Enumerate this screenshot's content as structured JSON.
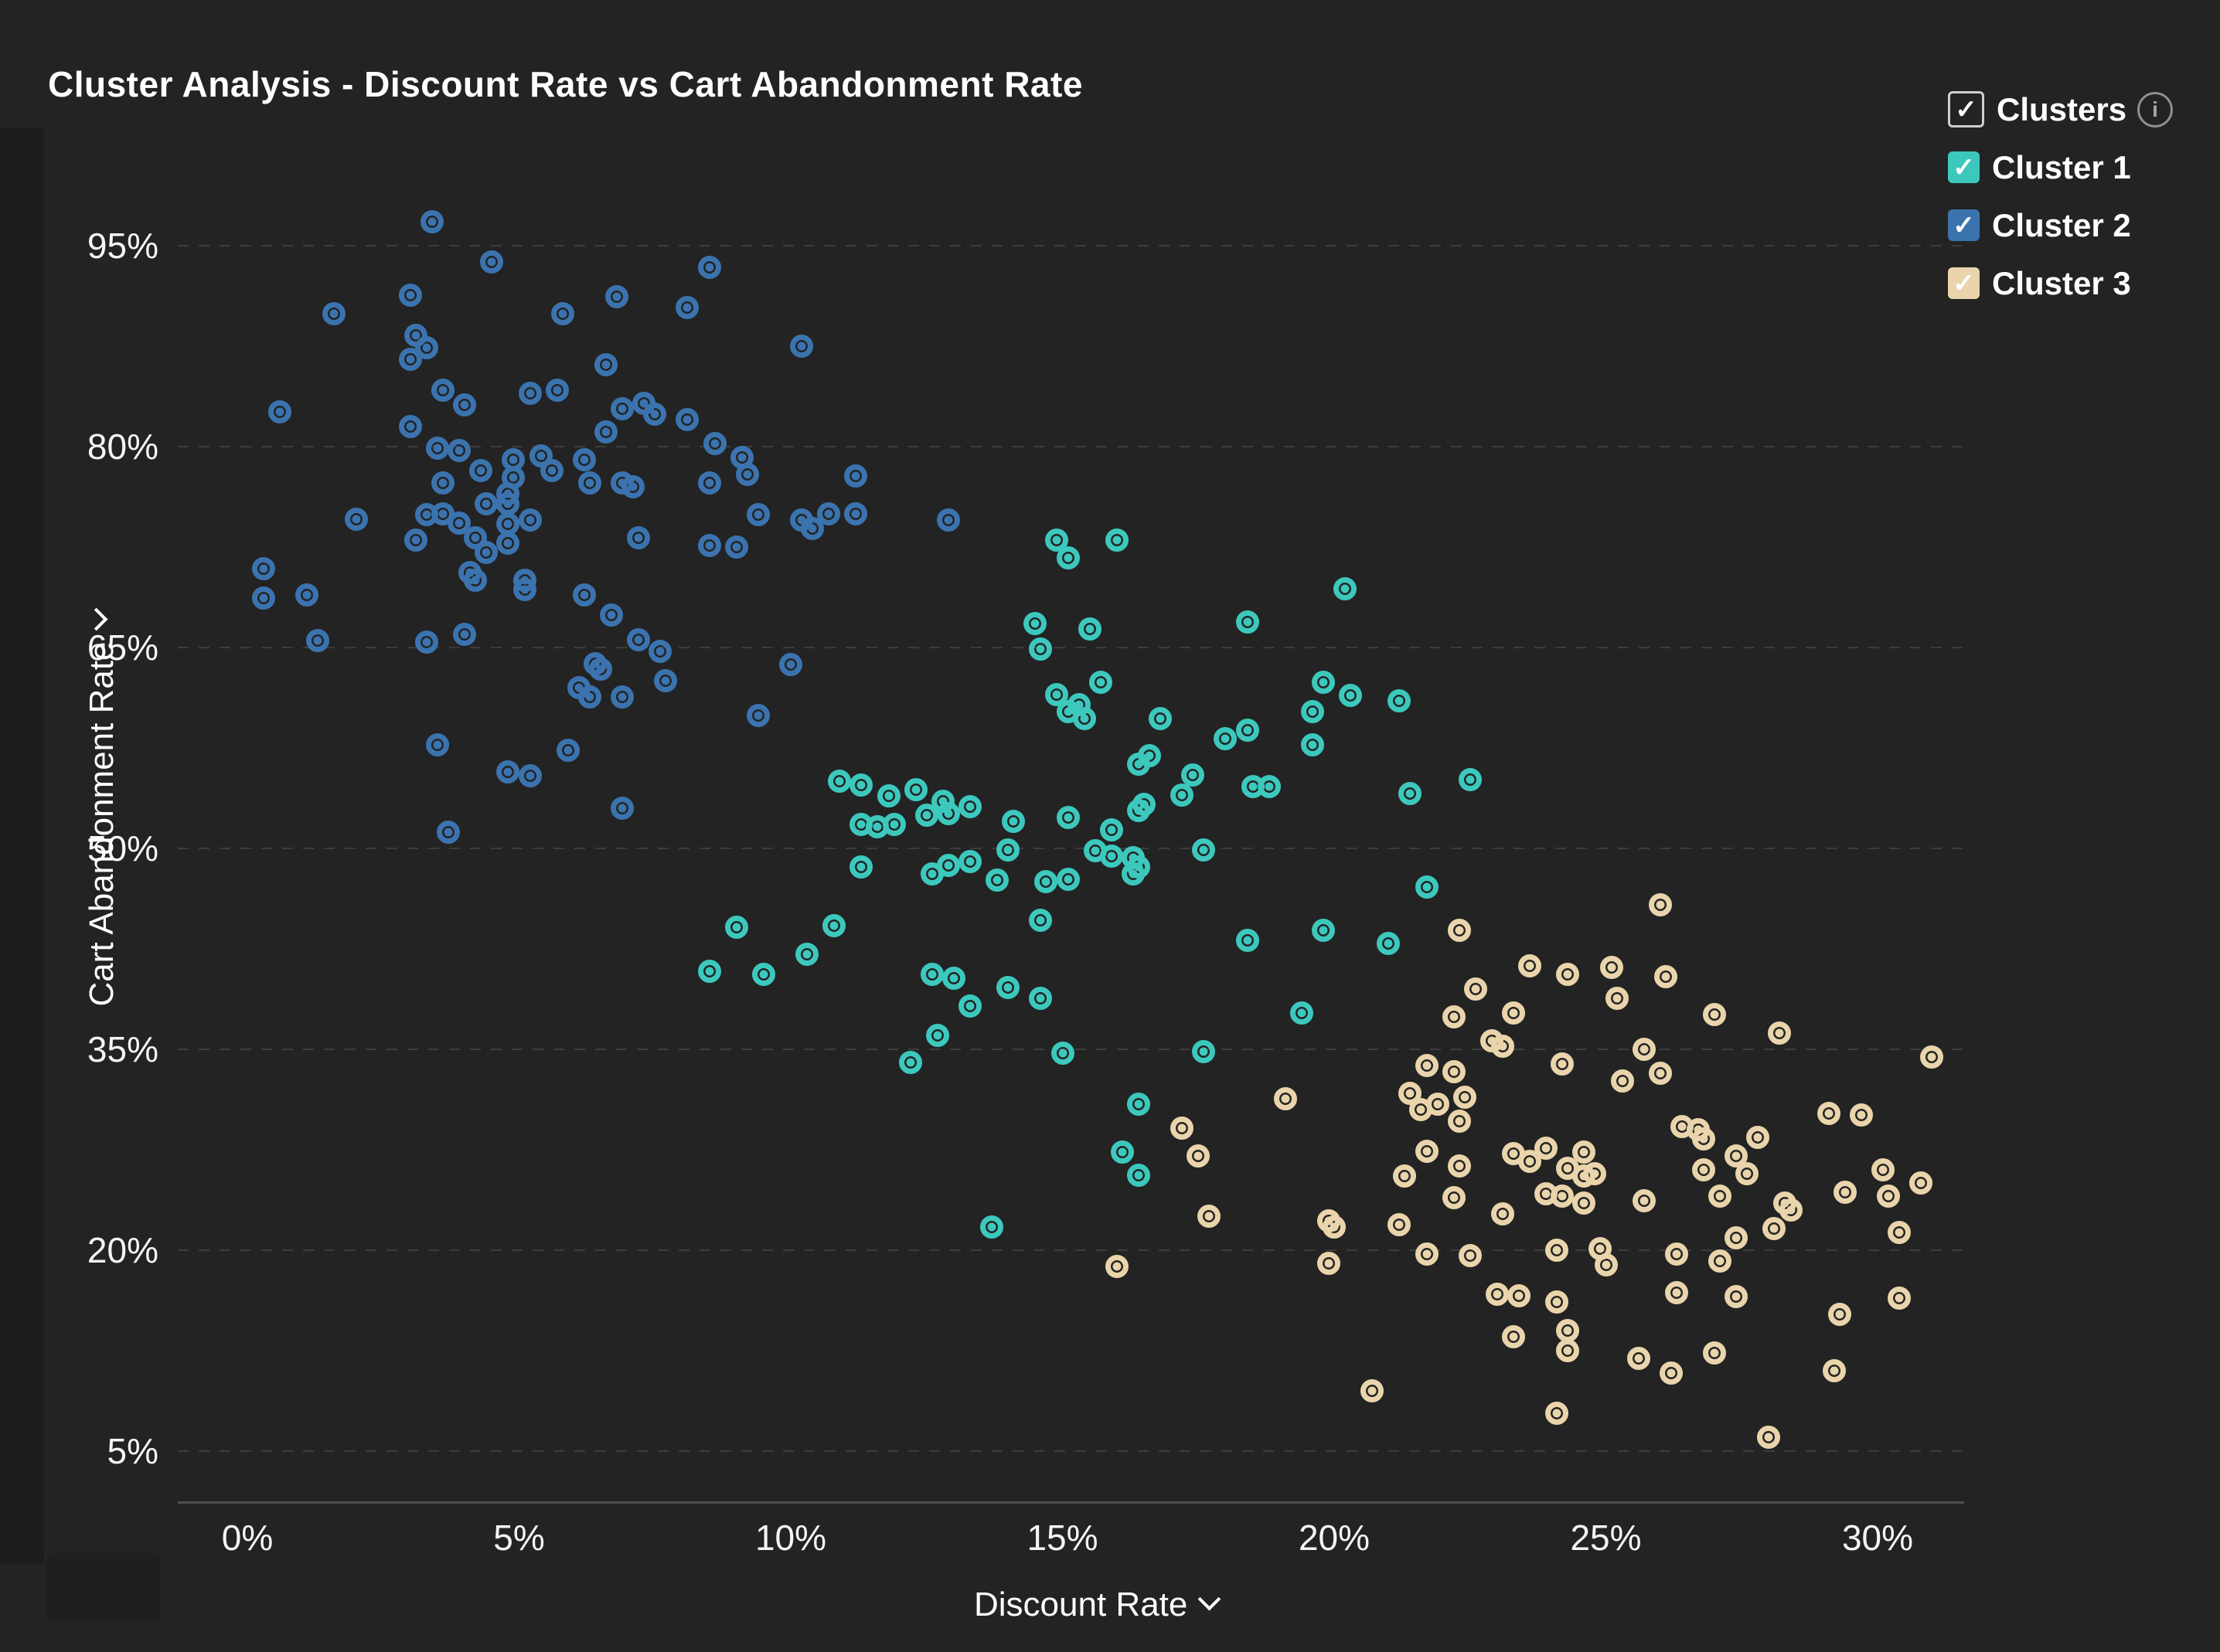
{
  "title": "Cluster Analysis - Discount Rate vs Cart Abandonment Rate",
  "legend": {
    "header": {
      "label": "Clusters",
      "checked": true
    },
    "items": [
      {
        "label": "Cluster 1",
        "color": "#3cc8bd",
        "checked": true
      },
      {
        "label": "Cluster 2",
        "color": "#3b73af",
        "checked": true
      },
      {
        "label": "Cluster 3",
        "color": "#e9d4ab",
        "checked": true
      }
    ]
  },
  "chart_data": {
    "type": "scatter",
    "title": "Cluster Analysis - Discount Rate vs Cart Abandonment Rate",
    "xlabel": "Discount Rate",
    "ylabel": "Cart Abandonment Rate",
    "x_ticks": {
      "values": [
        0,
        5,
        10,
        15,
        20,
        25,
        30
      ],
      "labels": [
        "0%",
        "5%",
        "10%",
        "15%",
        "20%",
        "25%",
        "30%"
      ]
    },
    "y_ticks": {
      "values": [
        95,
        80,
        65,
        50,
        35,
        20,
        5
      ],
      "labels": [
        "95%",
        "80%",
        "65%",
        "50%",
        "35%",
        "20%",
        "5%"
      ]
    },
    "xlim": [
      -1.3,
      31.7
    ],
    "ylim": [
      0,
      100
    ],
    "grid": "dashed-horizontal",
    "legend_position": "top-right",
    "series": [
      {
        "name": "Cluster 1",
        "color": "#3cc8bd",
        "points": [
          [
            14.9,
            73.0
          ],
          [
            16.0,
            73.0
          ],
          [
            15.1,
            71.7
          ],
          [
            20.2,
            69.4
          ],
          [
            18.4,
            66.9
          ],
          [
            15.5,
            66.4
          ],
          [
            14.5,
            66.8
          ],
          [
            14.6,
            64.9
          ],
          [
            15.7,
            62.4
          ],
          [
            14.9,
            61.5
          ],
          [
            15.3,
            60.7
          ],
          [
            15.1,
            60.2
          ],
          [
            15.4,
            59.7
          ],
          [
            16.8,
            59.7
          ],
          [
            19.8,
            62.4
          ],
          [
            21.2,
            61.0
          ],
          [
            20.3,
            61.4
          ],
          [
            19.6,
            60.2
          ],
          [
            18.0,
            58.2
          ],
          [
            18.4,
            58.8
          ],
          [
            19.6,
            57.7
          ],
          [
            16.6,
            56.9
          ],
          [
            16.4,
            56.3
          ],
          [
            17.4,
            55.5
          ],
          [
            18.5,
            54.6
          ],
          [
            18.8,
            54.6
          ],
          [
            22.5,
            55.1
          ],
          [
            21.4,
            54.1
          ],
          [
            17.2,
            54.0
          ],
          [
            16.5,
            53.3
          ],
          [
            10.9,
            55.0
          ],
          [
            11.3,
            54.7
          ],
          [
            11.8,
            53.9
          ],
          [
            12.3,
            54.4
          ],
          [
            12.8,
            53.5
          ],
          [
            13.3,
            53.1
          ],
          [
            11.3,
            51.8
          ],
          [
            11.6,
            51.6
          ],
          [
            11.9,
            51.8
          ],
          [
            12.5,
            52.5
          ],
          [
            12.9,
            52.6
          ],
          [
            14.1,
            52.0
          ],
          [
            14.0,
            49.9
          ],
          [
            11.3,
            48.6
          ],
          [
            12.6,
            48.1
          ],
          [
            12.9,
            48.7
          ],
          [
            13.3,
            49.0
          ],
          [
            13.8,
            47.6
          ],
          [
            15.1,
            52.3
          ],
          [
            16.4,
            52.8
          ],
          [
            15.9,
            51.4
          ],
          [
            15.6,
            49.8
          ],
          [
            15.9,
            49.4
          ],
          [
            16.3,
            49.3
          ],
          [
            16.4,
            48.6
          ],
          [
            16.3,
            48.1
          ],
          [
            15.1,
            47.7
          ],
          [
            14.7,
            47.5
          ],
          [
            17.6,
            49.9
          ],
          [
            14.6,
            44.6
          ],
          [
            21.7,
            47.1
          ],
          [
            18.4,
            43.1
          ],
          [
            19.8,
            43.9
          ],
          [
            21.0,
            42.9
          ],
          [
            19.4,
            37.7
          ],
          [
            15.0,
            34.7
          ],
          [
            17.6,
            34.8
          ],
          [
            16.4,
            30.9
          ],
          [
            16.1,
            27.3
          ],
          [
            16.4,
            25.6
          ],
          [
            9.0,
            44.1
          ],
          [
            10.8,
            44.2
          ],
          [
            10.3,
            42.1
          ],
          [
            8.5,
            40.8
          ],
          [
            9.5,
            40.6
          ],
          [
            12.6,
            40.6
          ],
          [
            13.0,
            40.3
          ],
          [
            13.3,
            38.2
          ],
          [
            14.0,
            39.6
          ],
          [
            14.6,
            38.8
          ],
          [
            12.7,
            36.0
          ],
          [
            12.2,
            34.0
          ],
          [
            13.7,
            21.7
          ]
        ]
      },
      {
        "name": "Cluster 2",
        "color": "#3b73af",
        "points": [
          [
            3.4,
            96.8
          ],
          [
            4.5,
            93.8
          ],
          [
            8.5,
            93.4
          ],
          [
            3.0,
            91.3
          ],
          [
            1.6,
            89.9
          ],
          [
            6.8,
            91.2
          ],
          [
            8.1,
            90.4
          ],
          [
            5.8,
            89.9
          ],
          [
            10.2,
            87.5
          ],
          [
            3.1,
            88.3
          ],
          [
            3.3,
            87.4
          ],
          [
            3.0,
            86.5
          ],
          [
            6.6,
            86.1
          ],
          [
            3.6,
            84.2
          ],
          [
            4.0,
            83.1
          ],
          [
            5.2,
            84.0
          ],
          [
            5.7,
            84.2
          ],
          [
            0.6,
            82.6
          ],
          [
            6.9,
            82.8
          ],
          [
            7.3,
            83.2
          ],
          [
            7.5,
            82.4
          ],
          [
            8.1,
            82.0
          ],
          [
            3.0,
            81.5
          ],
          [
            6.6,
            81.1
          ],
          [
            8.6,
            80.2
          ],
          [
            3.5,
            79.9
          ],
          [
            3.9,
            79.7
          ],
          [
            4.9,
            79.0
          ],
          [
            5.4,
            79.3
          ],
          [
            4.3,
            78.2
          ],
          [
            4.9,
            77.7
          ],
          [
            5.6,
            78.2
          ],
          [
            6.2,
            79.0
          ],
          [
            3.6,
            77.3
          ],
          [
            4.8,
            76.5
          ],
          [
            4.4,
            75.7
          ],
          [
            4.8,
            75.7
          ],
          [
            6.3,
            77.3
          ],
          [
            6.9,
            77.3
          ],
          [
            7.1,
            77.0
          ],
          [
            8.5,
            77.3
          ],
          [
            9.1,
            79.2
          ],
          [
            9.2,
            77.9
          ],
          [
            11.2,
            77.8
          ],
          [
            2.0,
            74.6
          ],
          [
            3.3,
            74.9
          ],
          [
            3.6,
            75.0
          ],
          [
            3.9,
            74.3
          ],
          [
            4.2,
            73.2
          ],
          [
            4.8,
            74.2
          ],
          [
            5.2,
            74.5
          ],
          [
            4.4,
            72.1
          ],
          [
            4.8,
            72.8
          ],
          [
            3.1,
            73.0
          ],
          [
            9.4,
            74.9
          ],
          [
            10.2,
            74.5
          ],
          [
            10.4,
            73.9
          ],
          [
            10.7,
            75.0
          ],
          [
            11.2,
            75.0
          ],
          [
            12.9,
            74.5
          ],
          [
            7.2,
            73.2
          ],
          [
            8.5,
            72.6
          ],
          [
            9.0,
            72.5
          ],
          [
            0.3,
            70.9
          ],
          [
            1.1,
            68.9
          ],
          [
            0.3,
            68.7
          ],
          [
            1.3,
            65.5
          ],
          [
            3.3,
            65.4
          ],
          [
            4.0,
            66.0
          ],
          [
            4.1,
            70.6
          ],
          [
            4.2,
            70.0
          ],
          [
            5.1,
            70.0
          ],
          [
            5.1,
            69.3
          ],
          [
            6.2,
            68.9
          ],
          [
            6.7,
            67.4
          ],
          [
            7.2,
            65.6
          ],
          [
            7.6,
            64.7
          ],
          [
            6.4,
            63.8
          ],
          [
            6.5,
            63.4
          ],
          [
            6.1,
            62.0
          ],
          [
            6.3,
            61.3
          ],
          [
            6.9,
            61.3
          ],
          [
            10.0,
            63.7
          ],
          [
            9.4,
            59.9
          ],
          [
            7.7,
            62.5
          ],
          [
            3.5,
            57.7
          ],
          [
            5.9,
            57.3
          ],
          [
            4.8,
            55.7
          ],
          [
            5.2,
            55.4
          ],
          [
            6.9,
            53.0
          ],
          [
            3.7,
            51.2
          ]
        ]
      },
      {
        "name": "Cluster 3",
        "color": "#e9d4ab",
        "points": [
          [
            26.0,
            45.8
          ],
          [
            22.3,
            43.9
          ],
          [
            23.6,
            41.2
          ],
          [
            24.3,
            40.6
          ],
          [
            25.1,
            41.1
          ],
          [
            26.1,
            40.4
          ],
          [
            22.6,
            39.5
          ],
          [
            25.2,
            38.8
          ],
          [
            27.0,
            37.6
          ],
          [
            28.2,
            36.2
          ],
          [
            22.2,
            37.4
          ],
          [
            23.3,
            37.7
          ],
          [
            22.9,
            35.6
          ],
          [
            23.1,
            35.2
          ],
          [
            31.0,
            34.4
          ],
          [
            25.7,
            35.0
          ],
          [
            26.0,
            33.2
          ],
          [
            24.2,
            33.9
          ],
          [
            25.3,
            32.6
          ],
          [
            21.7,
            33.8
          ],
          [
            22.2,
            33.3
          ],
          [
            21.4,
            31.7
          ],
          [
            21.6,
            30.5
          ],
          [
            21.9,
            30.9
          ],
          [
            22.4,
            31.4
          ],
          [
            22.3,
            29.6
          ],
          [
            19.1,
            31.3
          ],
          [
            17.2,
            29.1
          ],
          [
            17.5,
            27.0
          ],
          [
            21.7,
            27.4
          ],
          [
            22.3,
            26.3
          ],
          [
            23.3,
            27.2
          ],
          [
            23.6,
            26.6
          ],
          [
            23.9,
            27.6
          ],
          [
            24.6,
            27.3
          ],
          [
            24.3,
            26.1
          ],
          [
            24.6,
            25.5
          ],
          [
            24.8,
            25.7
          ],
          [
            23.9,
            24.2
          ],
          [
            24.2,
            24.0
          ],
          [
            24.6,
            23.5
          ],
          [
            21.3,
            25.5
          ],
          [
            22.2,
            23.9
          ],
          [
            23.1,
            22.7
          ],
          [
            25.7,
            23.7
          ],
          [
            26.4,
            29.2
          ],
          [
            26.7,
            29.0
          ],
          [
            26.8,
            28.3
          ],
          [
            26.8,
            26.0
          ],
          [
            27.1,
            24.0
          ],
          [
            27.4,
            27.0
          ],
          [
            27.6,
            25.7
          ],
          [
            27.8,
            28.4
          ],
          [
            29.1,
            30.2
          ],
          [
            29.7,
            30.1
          ],
          [
            30.1,
            26.0
          ],
          [
            30.2,
            24.0
          ],
          [
            29.4,
            24.3
          ],
          [
            28.3,
            23.5
          ],
          [
            28.4,
            23.0
          ],
          [
            28.1,
            21.6
          ],
          [
            27.4,
            20.9
          ],
          [
            27.1,
            19.2
          ],
          [
            26.3,
            19.7
          ],
          [
            24.9,
            20.1
          ],
          [
            25.0,
            18.9
          ],
          [
            24.1,
            20.0
          ],
          [
            22.5,
            19.6
          ],
          [
            21.7,
            19.7
          ],
          [
            19.9,
            19.0
          ],
          [
            19.9,
            22.2
          ],
          [
            20.0,
            21.7
          ],
          [
            21.2,
            21.9
          ],
          [
            16.0,
            18.8
          ],
          [
            17.7,
            22.5
          ],
          [
            23.0,
            16.7
          ],
          [
            23.4,
            16.6
          ],
          [
            24.1,
            16.1
          ],
          [
            23.3,
            13.5
          ],
          [
            24.3,
            14.0
          ],
          [
            24.3,
            12.5
          ],
          [
            25.6,
            11.9
          ],
          [
            26.2,
            10.8
          ],
          [
            27.0,
            12.3
          ],
          [
            29.2,
            11.0
          ],
          [
            27.4,
            16.5
          ],
          [
            26.3,
            16.8
          ],
          [
            30.4,
            16.4
          ],
          [
            29.3,
            15.2
          ],
          [
            20.7,
            9.5
          ],
          [
            24.1,
            7.8
          ],
          [
            28.0,
            6.0
          ],
          [
            30.8,
            25.0
          ],
          [
            30.4,
            21.3
          ]
        ]
      }
    ]
  },
  "colors": {
    "background": "#232323",
    "gridline": "#3d3d3d",
    "axis_line": "#4d4d4e",
    "text": "#ffffff",
    "cluster1": "#3cc8bd",
    "cluster2": "#3b73af",
    "cluster3": "#e9d4ab"
  },
  "icons": {
    "checkmark": "✓",
    "info": "i"
  }
}
